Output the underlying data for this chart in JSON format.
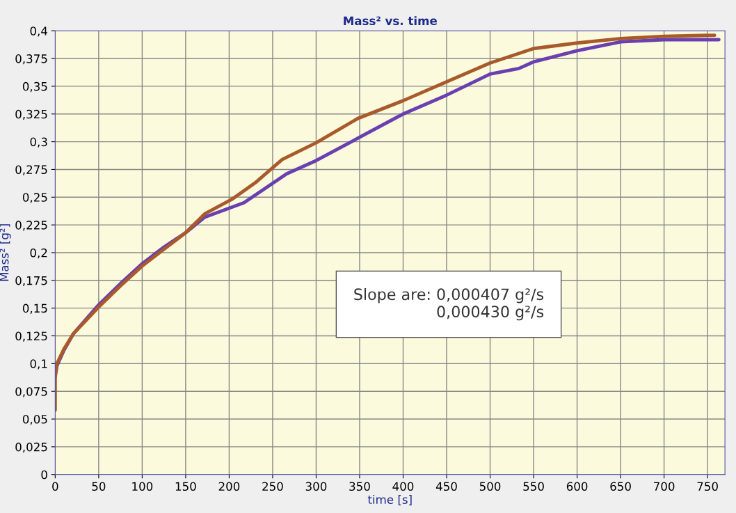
{
  "chart_data": {
    "type": "line",
    "title": "Mass² vs. time",
    "xlabel": "time [s]",
    "ylabel": "Mass² [g²]",
    "annotations": [
      "Slope are: 0,000407 g²/s\n0,000430 g²/s"
    ],
    "xlim": [
      0,
      770
    ],
    "ylim": [
      0,
      0.4
    ],
    "xticks": [
      0,
      50,
      100,
      150,
      200,
      250,
      300,
      350,
      400,
      450,
      500,
      550,
      600,
      650,
      700,
      750
    ],
    "yticks": [
      {
        "value": 0,
        "label": "0"
      },
      {
        "value": 0.025,
        "label": "0,025"
      },
      {
        "value": 0.05,
        "label": "0,05"
      },
      {
        "value": 0.075,
        "label": "0,075"
      },
      {
        "value": 0.1,
        "label": "0,1"
      },
      {
        "value": 0.125,
        "label": "0,125"
      },
      {
        "value": 0.15,
        "label": "0,15"
      },
      {
        "value": 0.175,
        "label": "0,175"
      },
      {
        "value": 0.2,
        "label": "0,2"
      },
      {
        "value": 0.225,
        "label": "0,225"
      },
      {
        "value": 0.25,
        "label": "0,25"
      },
      {
        "value": 0.275,
        "label": "0,275"
      },
      {
        "value": 0.3,
        "label": "0,3"
      },
      {
        "value": 0.325,
        "label": "0,325"
      },
      {
        "value": 0.35,
        "label": "0,35"
      },
      {
        "value": 0.375,
        "label": "0,375"
      },
      {
        "value": 0.4,
        "label": "0,4"
      }
    ],
    "grid": true,
    "marker": "none",
    "line_style": "solid",
    "series": [
      {
        "color": "#6a3fb0",
        "x": [
          0,
          2,
          10,
          21,
          50,
          75,
          100,
          125,
          150,
          172,
          217,
          266,
          300,
          350,
          400,
          450,
          500,
          533,
          550,
          600,
          650,
          700,
          763
        ],
        "values": [
          0.088,
          0.098,
          0.112,
          0.127,
          0.153,
          0.172,
          0.19,
          0.205,
          0.218,
          0.232,
          0.245,
          0.271,
          0.283,
          0.304,
          0.325,
          0.342,
          0.361,
          0.366,
          0.372,
          0.382,
          0.39,
          0.392,
          0.392
        ]
      },
      {
        "color": "#a85a2a",
        "x": [
          0,
          0,
          2,
          10,
          21,
          50,
          75,
          100,
          125,
          150,
          172,
          203,
          230,
          261,
          300,
          348,
          400,
          450,
          500,
          550,
          600,
          650,
          700,
          758
        ],
        "values": [
          0.058,
          0.09,
          0.1,
          0.113,
          0.127,
          0.151,
          0.17,
          0.188,
          0.203,
          0.218,
          0.235,
          0.248,
          0.263,
          0.284,
          0.299,
          0.321,
          0.337,
          0.354,
          0.371,
          0.384,
          0.389,
          0.393,
          0.395,
          0.396
        ]
      }
    ]
  }
}
